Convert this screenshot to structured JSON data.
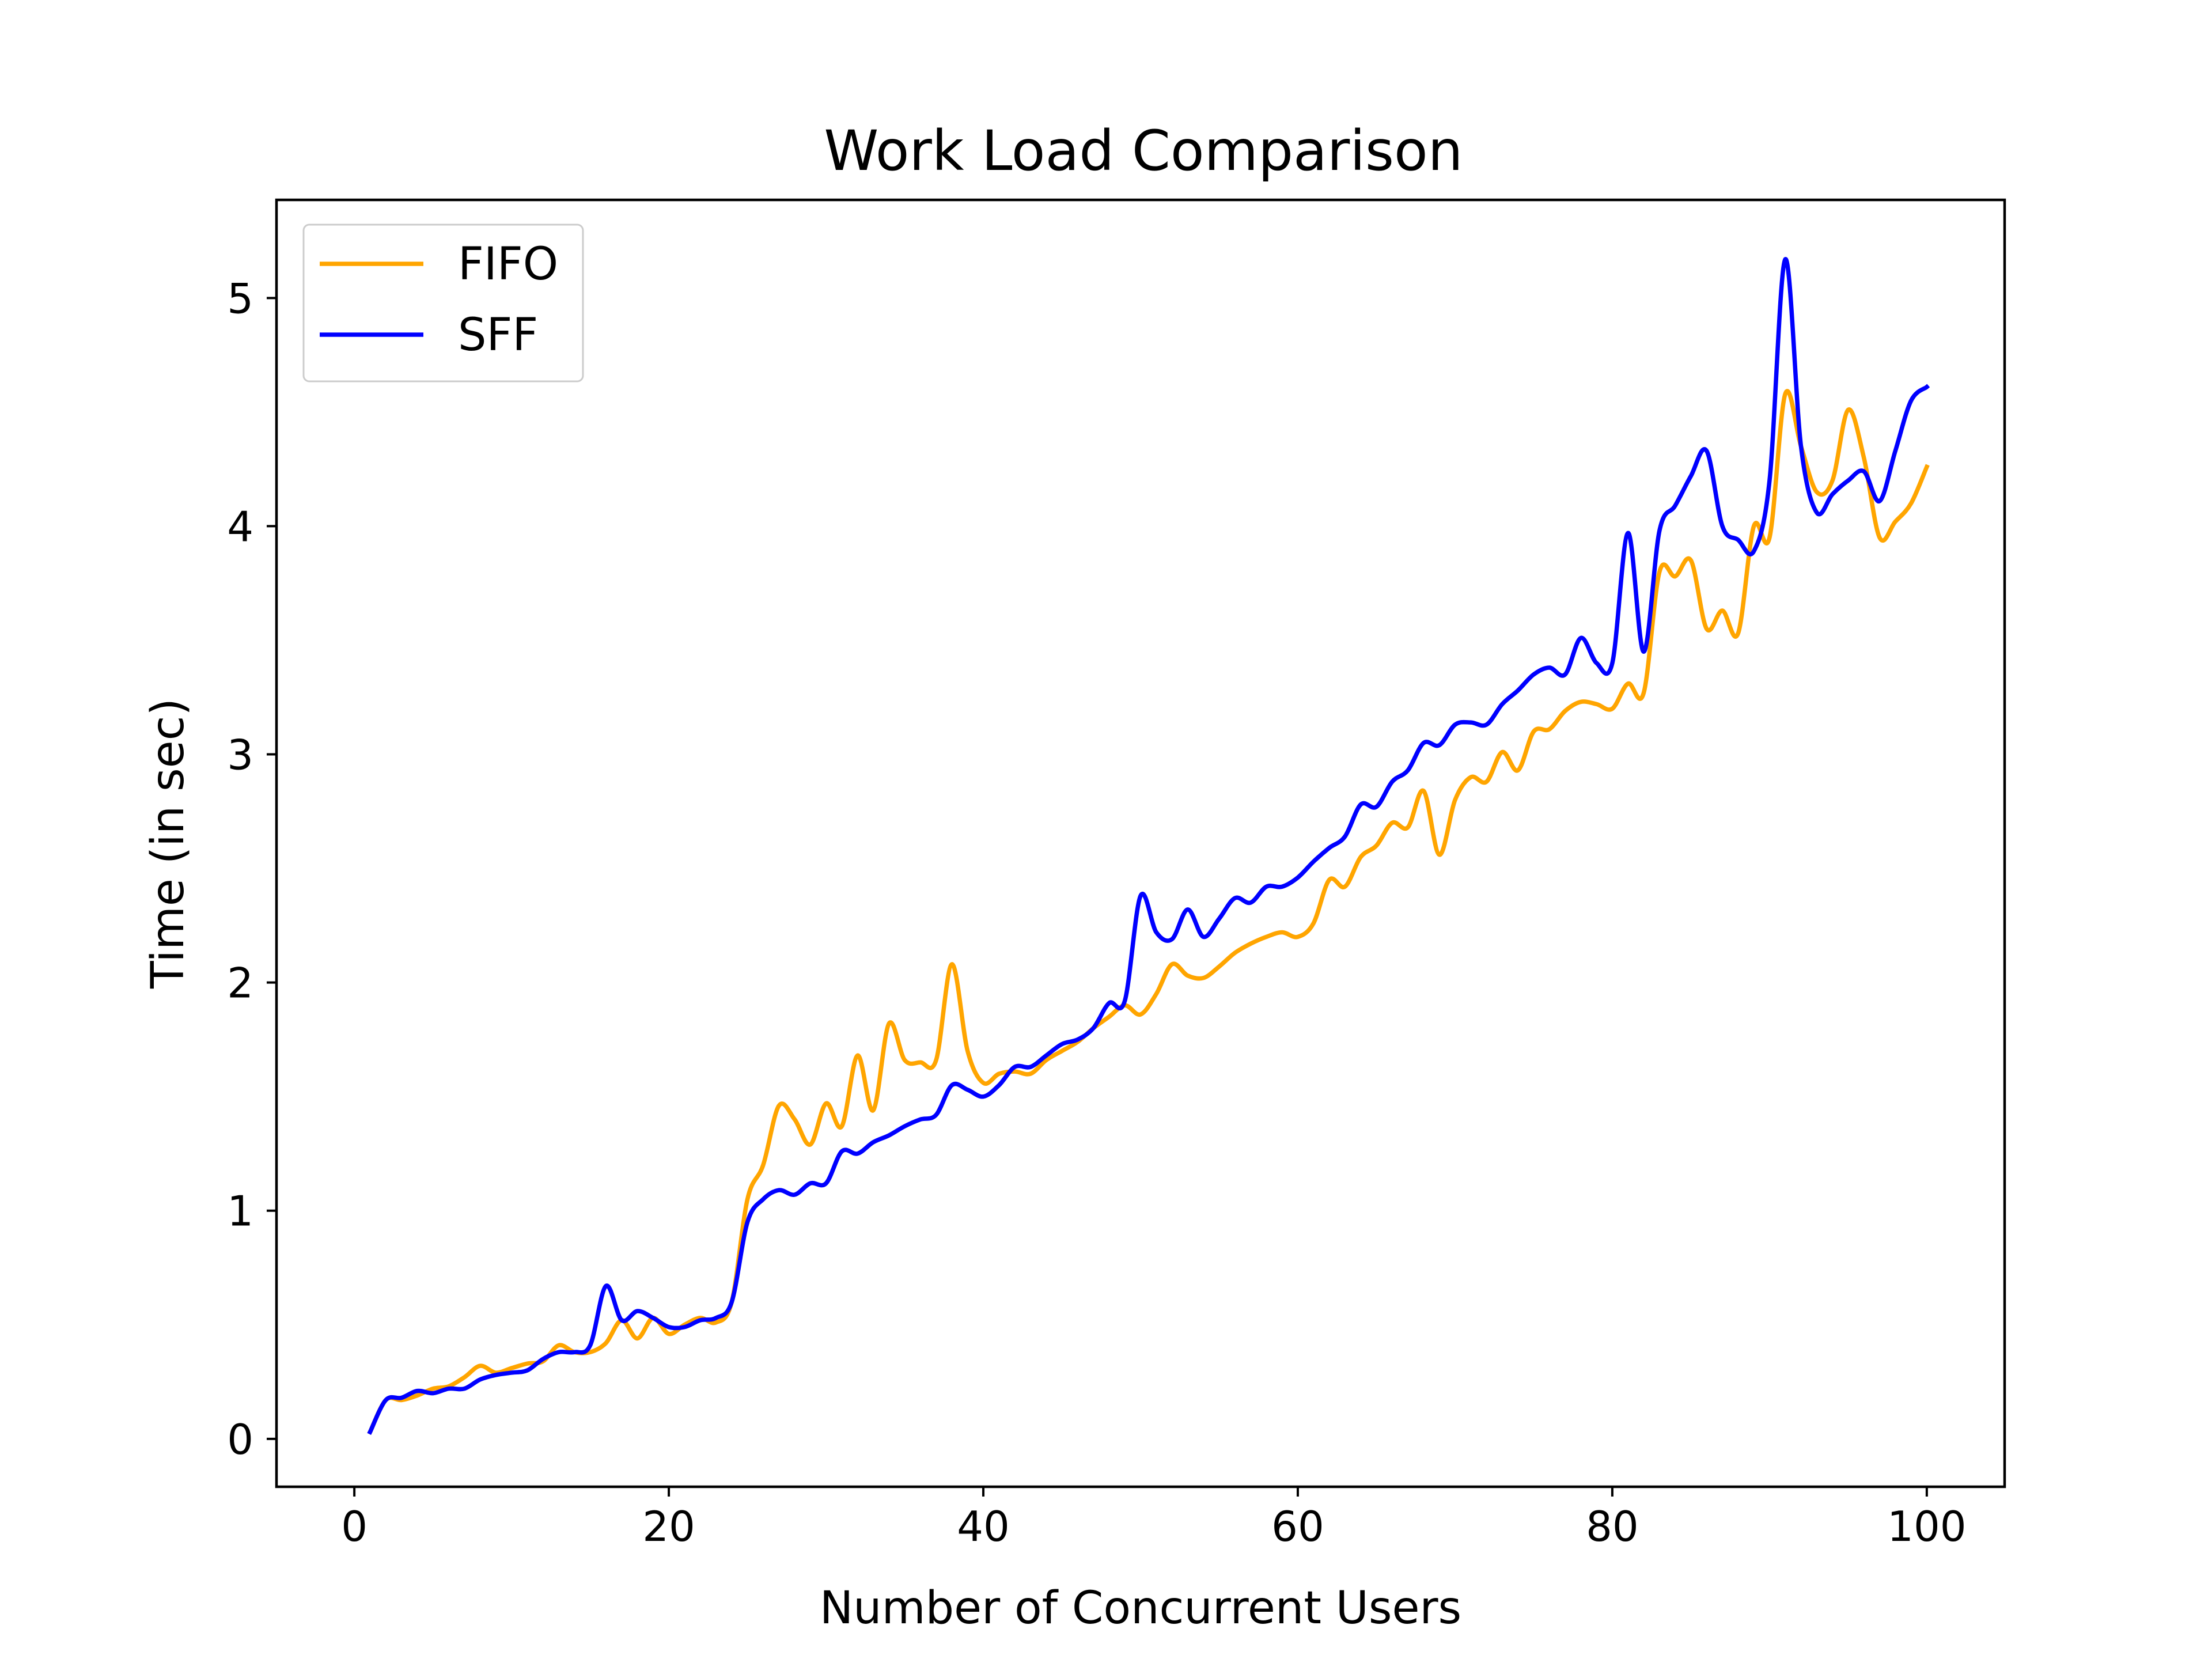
{
  "chart_data": {
    "type": "line",
    "title": "Work Load Comparison",
    "xlabel": "Number of Concurrent Users",
    "ylabel": "Time (in sec)",
    "xlim": [
      -4.95,
      104.95
    ],
    "ylim": [
      -0.21,
      5.43
    ],
    "xticks": [
      0,
      20,
      40,
      60,
      80,
      100
    ],
    "yticks": [
      0,
      1,
      2,
      3,
      4,
      5
    ],
    "xtick_labels": [
      "0",
      "20",
      "40",
      "60",
      "80",
      "100"
    ],
    "ytick_labels": [
      "0",
      "1",
      "2",
      "3",
      "4",
      "5"
    ],
    "legend_position": "upper-left",
    "grid": false,
    "series": [
      {
        "name": "FIFO",
        "color": "#ffa500",
        "x": [
          1,
          2,
          3,
          4,
          5,
          6,
          7,
          8,
          9,
          10,
          11,
          12,
          13,
          14,
          15,
          16,
          17,
          18,
          19,
          20,
          21,
          22,
          23,
          24,
          25,
          26,
          27,
          28,
          29,
          30,
          31,
          32,
          33,
          34,
          35,
          36,
          37,
          38,
          39,
          40,
          41,
          42,
          43,
          44,
          45,
          46,
          47,
          48,
          49,
          50,
          51,
          52,
          53,
          54,
          55,
          56,
          57,
          58,
          59,
          60,
          61,
          62,
          63,
          64,
          65,
          66,
          67,
          68,
          69,
          70,
          71,
          72,
          73,
          74,
          75,
          76,
          77,
          78,
          79,
          80,
          81,
          82,
          83,
          84,
          85,
          86,
          87,
          88,
          89,
          90,
          91,
          92,
          93,
          94,
          95,
          96,
          97,
          98,
          99,
          100
        ],
        "values": [
          0.03,
          0.17,
          0.17,
          0.19,
          0.22,
          0.23,
          0.27,
          0.32,
          0.29,
          0.31,
          0.33,
          0.34,
          0.41,
          0.38,
          0.38,
          0.42,
          0.52,
          0.44,
          0.53,
          0.46,
          0.5,
          0.53,
          0.51,
          0.6,
          1.05,
          1.2,
          1.46,
          1.4,
          1.29,
          1.47,
          1.37,
          1.68,
          1.44,
          1.82,
          1.66,
          1.65,
          1.66,
          2.08,
          1.7,
          1.56,
          1.6,
          1.61,
          1.6,
          1.66,
          1.7,
          1.74,
          1.8,
          1.85,
          1.9,
          1.86,
          1.95,
          2.08,
          2.03,
          2.02,
          2.07,
          2.13,
          2.17,
          2.2,
          2.22,
          2.2,
          2.26,
          2.45,
          2.42,
          2.55,
          2.6,
          2.7,
          2.68,
          2.84,
          2.56,
          2.8,
          2.9,
          2.88,
          3.01,
          2.93,
          3.1,
          3.11,
          3.19,
          3.23,
          3.22,
          3.2,
          3.31,
          3.27,
          3.8,
          3.78,
          3.85,
          3.55,
          3.63,
          3.53,
          4.0,
          3.95,
          4.58,
          4.35,
          4.15,
          4.2,
          4.51,
          4.3,
          3.95,
          4.02,
          4.1,
          4.26
        ]
      },
      {
        "name": "SFF",
        "color": "#0000ff",
        "x": [
          1,
          2,
          3,
          4,
          5,
          6,
          7,
          8,
          9,
          10,
          11,
          12,
          13,
          14,
          15,
          16,
          17,
          18,
          19,
          20,
          21,
          22,
          23,
          24,
          25,
          26,
          27,
          28,
          29,
          30,
          31,
          32,
          33,
          34,
          35,
          36,
          37,
          38,
          39,
          40,
          41,
          42,
          43,
          44,
          45,
          46,
          47,
          48,
          49,
          50,
          51,
          52,
          53,
          54,
          55,
          56,
          57,
          58,
          59,
          60,
          61,
          62,
          63,
          64,
          65,
          66,
          67,
          68,
          69,
          70,
          71,
          72,
          73,
          74,
          75,
          76,
          77,
          78,
          79,
          80,
          81,
          82,
          83,
          84,
          85,
          86,
          87,
          88,
          89,
          90,
          91,
          92,
          93,
          94,
          95,
          96,
          97,
          98,
          99,
          100
        ],
        "values": [
          0.03,
          0.17,
          0.18,
          0.21,
          0.2,
          0.22,
          0.22,
          0.26,
          0.28,
          0.29,
          0.3,
          0.35,
          0.38,
          0.38,
          0.41,
          0.67,
          0.52,
          0.56,
          0.53,
          0.49,
          0.49,
          0.52,
          0.53,
          0.6,
          0.95,
          1.05,
          1.09,
          1.07,
          1.12,
          1.12,
          1.26,
          1.25,
          1.3,
          1.33,
          1.37,
          1.4,
          1.42,
          1.55,
          1.53,
          1.5,
          1.55,
          1.63,
          1.63,
          1.68,
          1.73,
          1.75,
          1.8,
          1.91,
          1.92,
          2.38,
          2.22,
          2.19,
          2.32,
          2.2,
          2.28,
          2.37,
          2.35,
          2.42,
          2.42,
          2.46,
          2.53,
          2.59,
          2.64,
          2.78,
          2.77,
          2.88,
          2.93,
          3.05,
          3.04,
          3.13,
          3.14,
          3.13,
          3.22,
          3.28,
          3.35,
          3.38,
          3.35,
          3.51,
          3.4,
          3.4,
          3.97,
          3.45,
          3.98,
          4.09,
          4.22,
          4.33,
          4.0,
          3.94,
          3.89,
          4.2,
          5.17,
          4.35,
          4.06,
          4.14,
          4.2,
          4.24,
          4.11,
          4.33,
          4.55,
          4.61
        ]
      }
    ]
  }
}
